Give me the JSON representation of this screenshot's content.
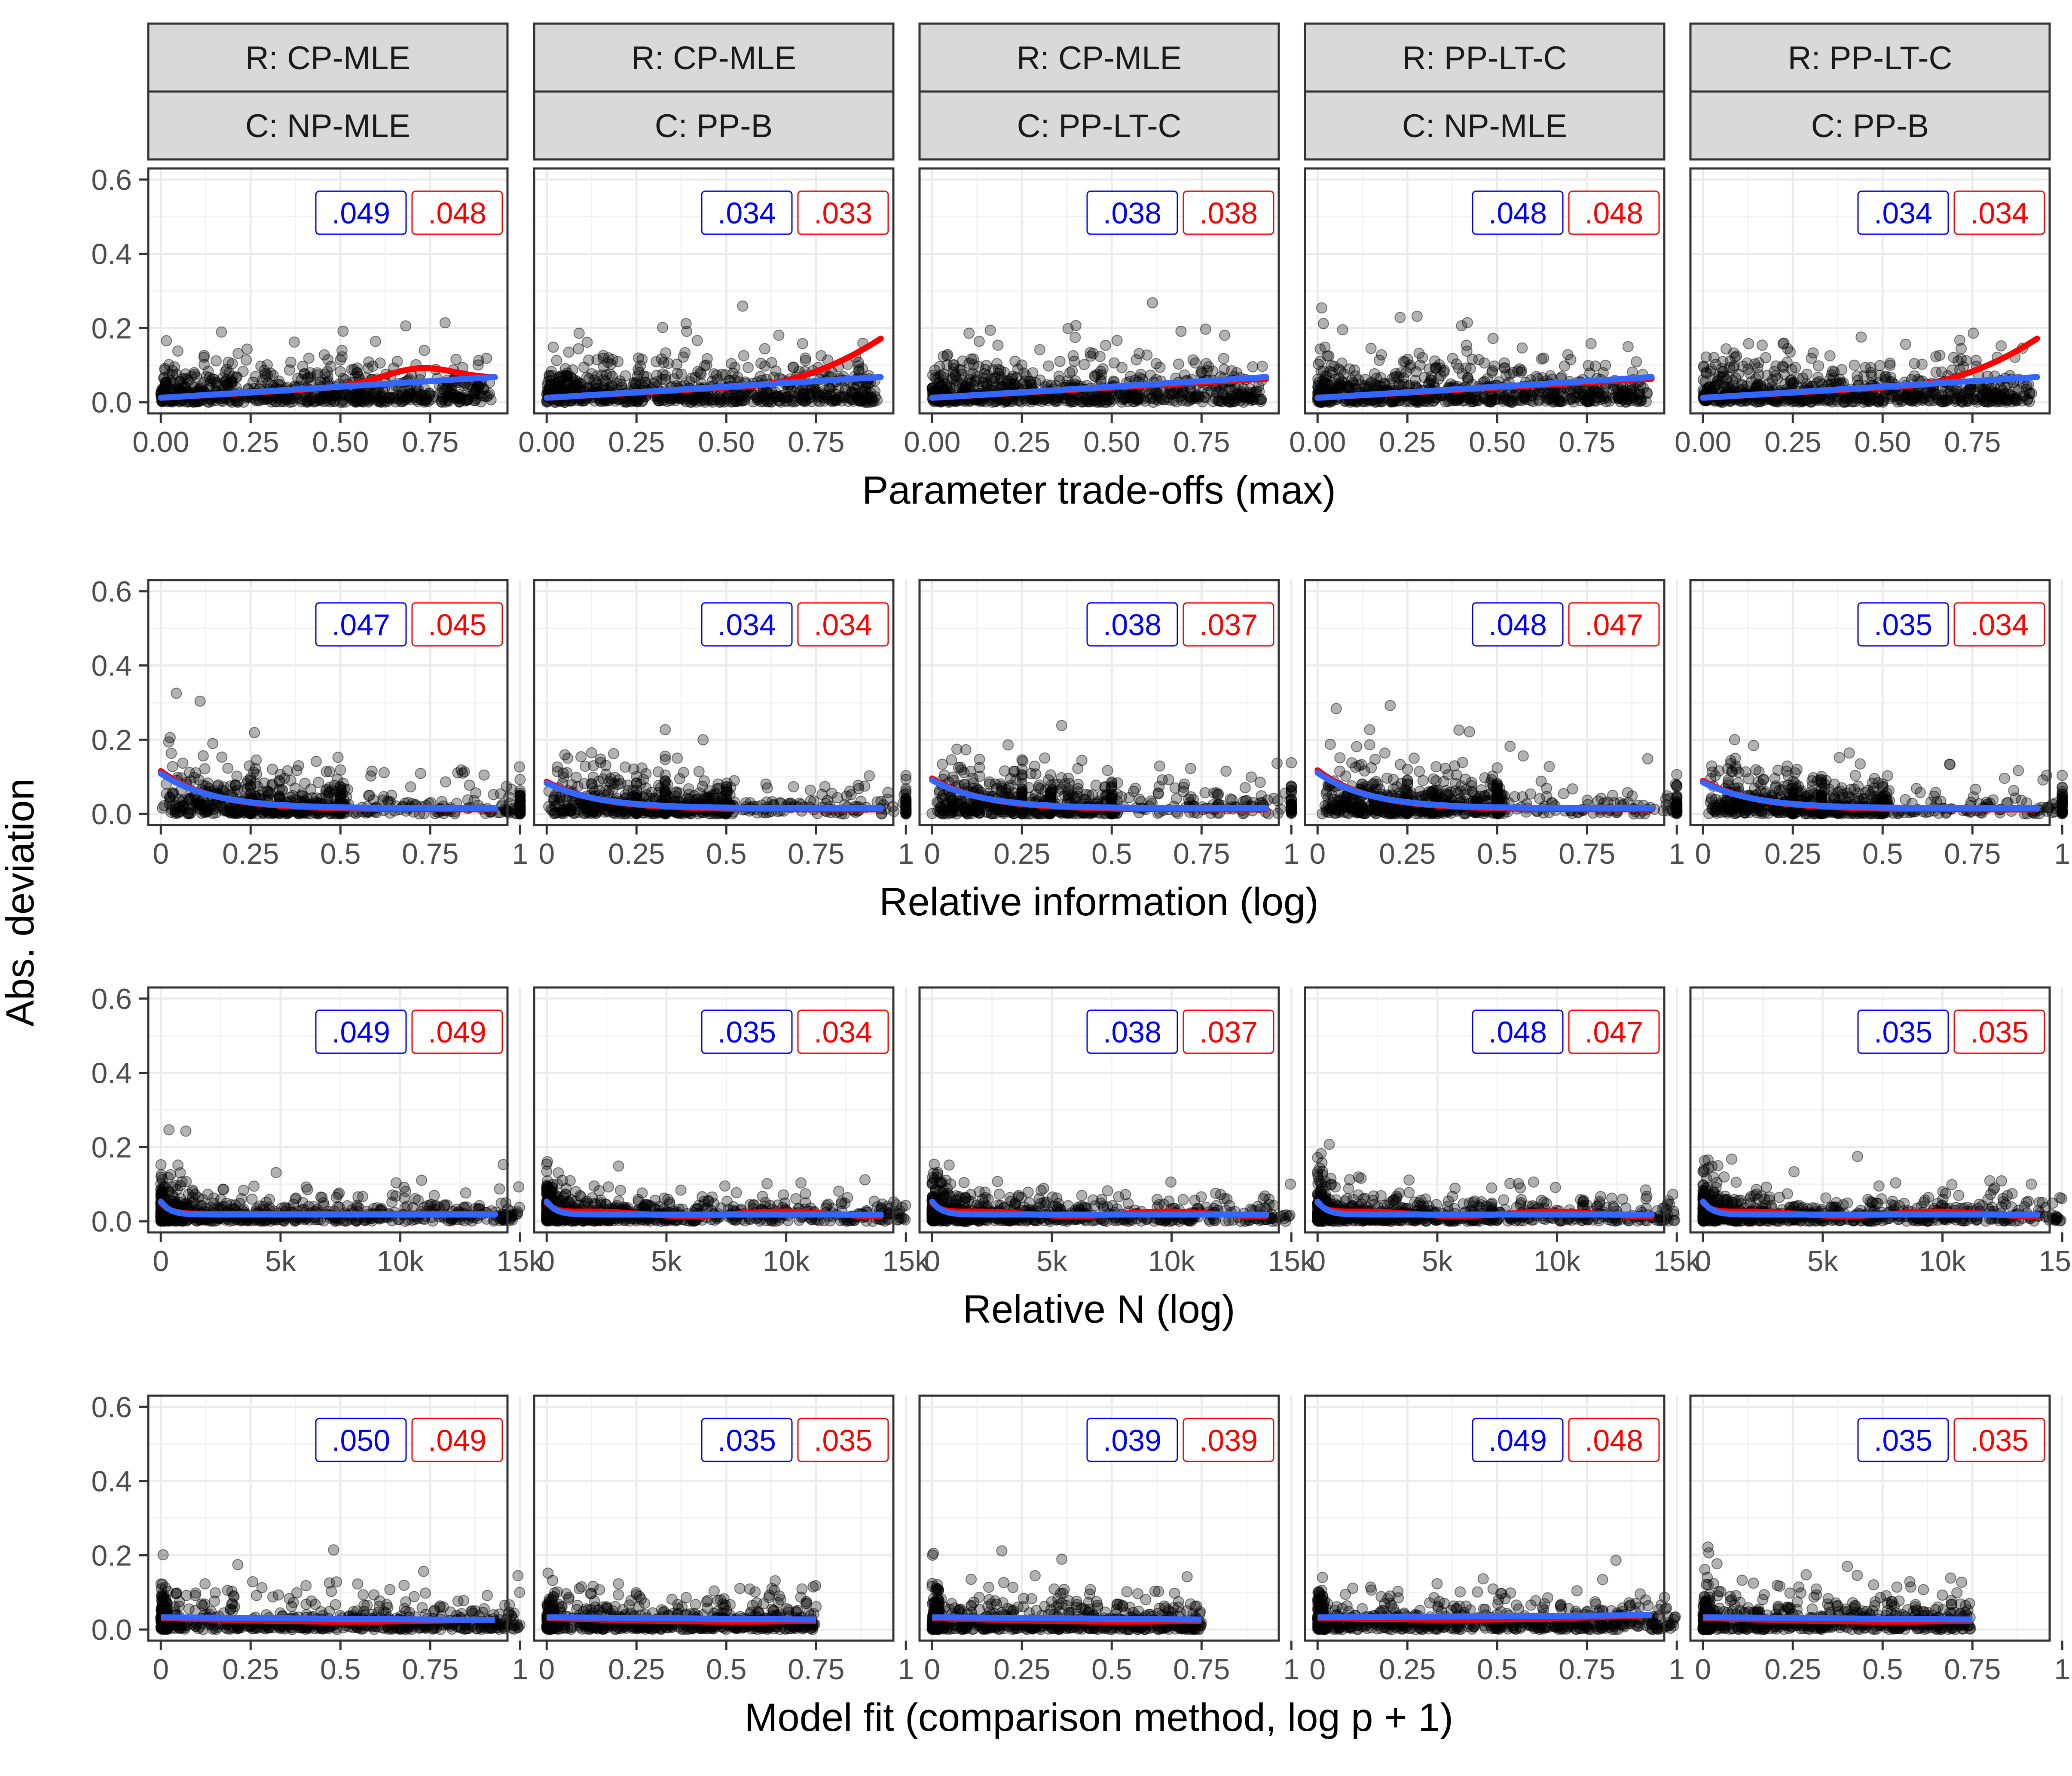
{
  "figure": {
    "ylabel": "Abs. deviation",
    "y_ticks": [
      "0.0",
      "0.2",
      "0.4",
      "0.6"
    ],
    "colors": {
      "blue": "#0000ff",
      "red": "#ff0000",
      "smooth_blue": "#3366ff",
      "smooth_red": "#ff0000",
      "points": "#000000"
    }
  },
  "columns": [
    {
      "r": "R: CP-MLE",
      "c": "C: NP-MLE"
    },
    {
      "r": "R: CP-MLE",
      "c": "C: PP-B"
    },
    {
      "r": "R: CP-MLE",
      "c": "C: PP-LT-C"
    },
    {
      "r": "R: PP-LT-C",
      "c": "C: NP-MLE"
    },
    {
      "r": "R: PP-LT-C",
      "c": "C: PP-B"
    }
  ],
  "chart_data": [
    {
      "type": "scatter",
      "xlabel": "Parameter trade-offs (max)",
      "x_ticks": [
        "0.00",
        "0.25",
        "0.50",
        "0.75"
      ],
      "ylim": [
        0,
        0.6
      ],
      "panels": [
        {
          "blue": ".049",
          "red": ".048"
        },
        {
          "blue": ".034",
          "red": ".033"
        },
        {
          "blue": ".038",
          "red": ".038"
        },
        {
          "blue": ".048",
          "red": ".048"
        },
        {
          "blue": ".034",
          "red": ".034"
        }
      ]
    },
    {
      "type": "scatter",
      "xlabel": "Relative information (log)",
      "x_ticks": [
        "0",
        "0.25",
        "0.5",
        "0.75",
        "1"
      ],
      "ylim": [
        0,
        0.6
      ],
      "panels": [
        {
          "blue": ".047",
          "red": ".045"
        },
        {
          "blue": ".034",
          "red": ".034"
        },
        {
          "blue": ".038",
          "red": ".037"
        },
        {
          "blue": ".048",
          "red": ".047"
        },
        {
          "blue": ".035",
          "red": ".034"
        }
      ]
    },
    {
      "type": "scatter",
      "xlabel": "Relative N (log)",
      "x_ticks": [
        "0",
        "5k",
        "10k",
        "15k"
      ],
      "ylim": [
        0,
        0.6
      ],
      "panels": [
        {
          "blue": ".049",
          "red": ".049"
        },
        {
          "blue": ".035",
          "red": ".034"
        },
        {
          "blue": ".038",
          "red": ".037"
        },
        {
          "blue": ".048",
          "red": ".047"
        },
        {
          "blue": ".035",
          "red": ".035"
        }
      ]
    },
    {
      "type": "scatter",
      "xlabel": "Model fit (comparison method, log p + 1)",
      "x_ticks": [
        "0",
        "0.25",
        "0.5",
        "0.75",
        "1"
      ],
      "ylim": [
        0,
        0.6
      ],
      "panels": [
        {
          "blue": ".050",
          "red": ".049"
        },
        {
          "blue": ".035",
          "red": ".035"
        },
        {
          "blue": ".039",
          "red": ".039"
        },
        {
          "blue": ".049",
          "red": ".048"
        },
        {
          "blue": ".035",
          "red": ".035"
        }
      ]
    }
  ]
}
